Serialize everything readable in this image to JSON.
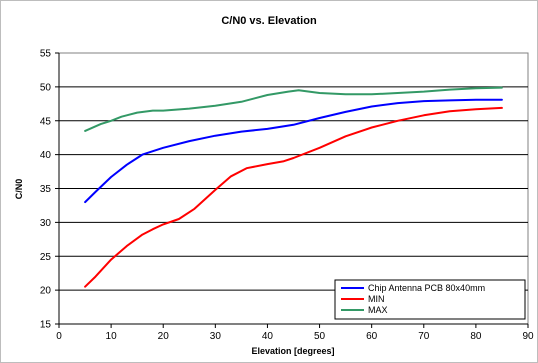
{
  "chart_data": {
    "type": "line",
    "title": "C/N0 vs. Elevation",
    "xlabel": "Elevation [degrees]",
    "ylabel": "C/N0",
    "xlim": [
      0,
      90
    ],
    "ylim": [
      15,
      55
    ],
    "xticks": [
      0,
      10,
      20,
      30,
      40,
      50,
      60,
      70,
      80,
      90
    ],
    "yticks": [
      15,
      20,
      25,
      30,
      35,
      40,
      45,
      50,
      55
    ],
    "grid": "horizontal",
    "legend_position": "bottom-right",
    "series": [
      {
        "name": "Chip Antenna PCB 80x40mm",
        "color": "#0000ff",
        "x": [
          5,
          7,
          10,
          13,
          16,
          18,
          20,
          25,
          30,
          35,
          40,
          45,
          50,
          55,
          60,
          65,
          70,
          75,
          80,
          85
        ],
        "y": [
          33,
          34.5,
          36.7,
          38.5,
          40,
          40.5,
          41,
          42,
          42.8,
          43.4,
          43.8,
          44.4,
          45.4,
          46.3,
          47.1,
          47.6,
          47.9,
          48.0,
          48.1,
          48.1
        ]
      },
      {
        "name": "MIN",
        "color": "#ff0000",
        "x": [
          5,
          7,
          10,
          13,
          16,
          18,
          20,
          23,
          26,
          30,
          33,
          36,
          40,
          43,
          45,
          50,
          55,
          60,
          65,
          70,
          75,
          80,
          85
        ],
        "y": [
          20.5,
          22,
          24.5,
          26.5,
          28.2,
          29,
          29.7,
          30.5,
          32,
          34.8,
          36.8,
          38,
          38.6,
          39,
          39.5,
          41,
          42.7,
          44,
          45,
          45.8,
          46.4,
          46.7,
          46.9
        ]
      },
      {
        "name": "MAX",
        "color": "#339966",
        "x": [
          5,
          8,
          10,
          12,
          15,
          18,
          20,
          25,
          30,
          35,
          40,
          44,
          46,
          48,
          50,
          55,
          60,
          65,
          70,
          75,
          80,
          85
        ],
        "y": [
          43.5,
          44.5,
          45,
          45.6,
          46.2,
          46.5,
          46.5,
          46.8,
          47.2,
          47.8,
          48.8,
          49.3,
          49.5,
          49.3,
          49.1,
          48.9,
          48.9,
          49.1,
          49.3,
          49.6,
          49.8,
          49.9
        ]
      }
    ]
  }
}
